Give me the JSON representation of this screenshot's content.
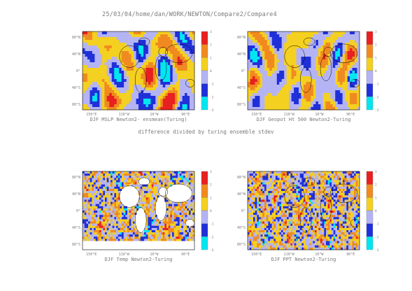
{
  "header": {
    "path_title": "25/03/04/home/dan/WORK/NEWTON/Compare2/Compare4",
    "subtitle": "difference divided by turing ensemble stdev"
  },
  "palette": {
    "levels": [
      "-3",
      "-2",
      "-1",
      "0",
      "1",
      "2",
      "3"
    ],
    "colors": [
      "#00e6f0",
      "#2030d8",
      "#b4b4f4",
      "#f4d020",
      "#f08a20",
      "#e82020"
    ],
    "map_outline": "#000000"
  },
  "chart_data": [
    {
      "type": "heatmap",
      "title": "DJF MSLP Newton2- ensmean(Turing)",
      "x_tick_labels": [
        "150°E",
        "110°W",
        "10°W",
        "90°E"
      ],
      "y_tick_labels": [
        "80°N",
        "40°N",
        "0°",
        "40°S",
        "80°S"
      ],
      "colorbar_labels": [
        "-3",
        "-2",
        "-1",
        "0",
        "1",
        "2",
        "3"
      ],
      "pattern": "smooth-mslp"
    },
    {
      "type": "heatmap",
      "title": "DJF Geopot Ht 500 Newton2-Turing",
      "x_tick_labels": [
        "150°E",
        "110°W",
        "10°W",
        "90°E"
      ],
      "y_tick_labels": [
        "80°N",
        "40°N",
        "0°",
        "40°S",
        "80°S"
      ],
      "colorbar_labels": [
        "-3",
        "-2",
        "-1",
        "0",
        "1",
        "2",
        "3"
      ],
      "pattern": "smooth-geopot"
    },
    {
      "type": "heatmap",
      "title": "DJF Temp Newton2-Turing",
      "x_tick_labels": [
        "150°E",
        "110°W",
        "10°W",
        "90°E"
      ],
      "y_tick_labels": [
        "80°N",
        "40°N",
        "0°",
        "40°S",
        "80°S"
      ],
      "colorbar_labels": [
        "-3",
        "-2",
        "-1",
        "0",
        "1",
        "2",
        "3"
      ],
      "pattern": "noisy-ocean-only"
    },
    {
      "type": "heatmap",
      "title": "DJF PPT Newton2-Turing",
      "x_tick_labels": [
        "150°E",
        "110°W",
        "10°W",
        "90°E"
      ],
      "y_tick_labels": [
        "80°N",
        "40°N",
        "0°",
        "40°S",
        "80°S"
      ],
      "colorbar_labels": [
        "-3",
        "-2",
        "-1",
        "0",
        "1",
        "2",
        "3"
      ],
      "pattern": "noisy-global"
    }
  ]
}
